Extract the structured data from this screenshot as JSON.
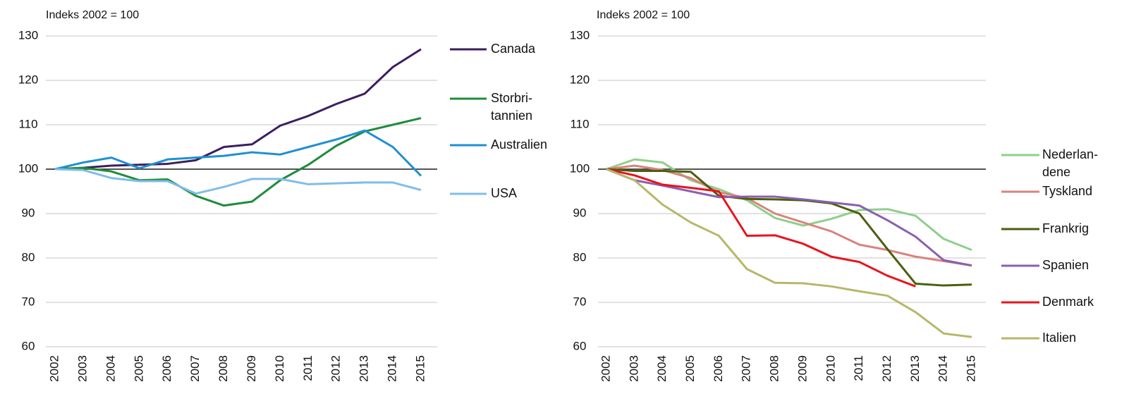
{
  "chart_data": [
    {
      "type": "line",
      "subtitle": "Indeks 2002 = 100",
      "x": [
        "2002",
        "2003",
        "2004",
        "2005",
        "2006",
        "2007",
        "2008",
        "2009",
        "2010",
        "2011",
        "2012",
        "2013",
        "2014",
        "2015"
      ],
      "ylim": [
        60,
        130
      ],
      "yticks": [
        60,
        70,
        80,
        90,
        100,
        110,
        120,
        130
      ],
      "grid": true,
      "reference_line": 100,
      "series": [
        {
          "name": "Canada",
          "color": "#3b1f5e",
          "values": [
            100,
            100.3,
            100.8,
            101,
            101.2,
            102,
            105,
            105.6,
            109.8,
            112,
            114.7,
            117,
            123,
            127
          ]
        },
        {
          "name": "Storbri-\ntannien",
          "color": "#1e8c3a",
          "values": [
            100,
            100.3,
            99.5,
            97.5,
            97.7,
            94,
            91.8,
            92.7,
            97.5,
            101,
            105.3,
            108.5,
            110,
            111.5
          ]
        },
        {
          "name": "Australien",
          "color": "#1e8fd6",
          "values": [
            100,
            101.5,
            102.6,
            100.2,
            102.2,
            102.6,
            103,
            103.8,
            103.3,
            105,
            106.7,
            108.7,
            105,
            98.5
          ]
        },
        {
          "name": "USA",
          "color": "#7fbde8",
          "values": [
            100,
            99.8,
            98,
            97.3,
            97.3,
            94.5,
            96,
            97.8,
            97.8,
            96.6,
            96.8,
            97,
            97,
            95.3
          ]
        }
      ]
    },
    {
      "type": "line",
      "subtitle": "Indeks 2002 = 100",
      "x": [
        "2002",
        "2003",
        "2004",
        "2005",
        "2006",
        "2007",
        "2008",
        "2009",
        "2010",
        "2011",
        "2012",
        "2013",
        "2014",
        "2015"
      ],
      "ylim": [
        60,
        130
      ],
      "yticks": [
        60,
        70,
        80,
        90,
        100,
        110,
        120,
        130
      ],
      "grid": true,
      "reference_line": 100,
      "series": [
        {
          "name": "Nederlan-\ndene",
          "color": "#8fcf8a",
          "values": [
            100,
            102.2,
            101.5,
            97.5,
            95.5,
            93,
            89,
            87.3,
            88.8,
            90.8,
            91,
            89.5,
            84.3,
            81.8
          ]
        },
        {
          "name": "Tyskland",
          "color": "#d9837d",
          "values": [
            100,
            100.8,
            99.8,
            98,
            94.8,
            93.5,
            90,
            88,
            86,
            83,
            81.8,
            80.3,
            79.3,
            78.3
          ]
        },
        {
          "name": "Frankrig",
          "color": "#4b5e0e",
          "values": [
            100,
            99.6,
            99.6,
            99.4,
            94,
            93.3,
            93.2,
            93,
            92.3,
            90,
            82,
            74.2,
            73.8,
            74
          ]
        },
        {
          "name": "Spanien",
          "color": "#8a5fb0",
          "values": [
            100,
            97.5,
            96.3,
            95,
            93.7,
            93.8,
            93.8,
            93.2,
            92.5,
            91.8,
            88.5,
            84.8,
            79.5,
            78.3
          ]
        },
        {
          "name": "Denmark",
          "color": "#e8141c",
          "values": [
            100,
            98.6,
            96.5,
            95.8,
            95,
            85,
            85.1,
            83.2,
            80.3,
            79.1,
            76,
            73.6,
            null,
            null
          ]
        },
        {
          "name": "Italien",
          "color": "#b8b76a",
          "values": [
            100,
            97.5,
            92,
            88,
            85,
            77.5,
            74.4,
            74.3,
            73.6,
            72.5,
            71.5,
            67.8,
            63,
            62.2
          ]
        }
      ]
    }
  ]
}
